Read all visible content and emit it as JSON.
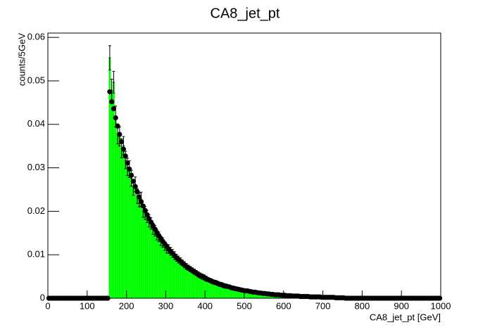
{
  "chart_data": {
    "type": "histogram",
    "title": "CA8_jet_pt",
    "xlabel": "CA8_jet_pt [GeV]",
    "ylabel": "counts/5GeV",
    "xlim": [
      0,
      1000
    ],
    "ylim": [
      0,
      0.061
    ],
    "xticks": [
      0,
      100,
      200,
      300,
      400,
      500,
      600,
      700,
      800,
      900,
      1000
    ],
    "yticks": [
      0,
      0.01,
      0.02,
      0.03,
      0.04,
      0.05,
      0.06
    ],
    "bins": [
      0,
      5,
      10,
      15,
      20,
      25,
      30,
      35,
      40,
      45,
      50,
      55,
      60,
      65,
      70,
      75,
      80,
      85,
      90,
      95,
      100,
      105,
      110,
      115,
      120,
      125,
      130,
      135,
      140,
      145,
      150,
      155,
      160,
      165,
      170,
      175,
      180,
      185,
      190,
      195,
      200,
      205,
      210,
      215,
      220,
      225,
      230,
      235,
      240,
      245,
      250,
      255,
      260,
      265,
      270,
      275,
      280,
      285,
      290,
      295,
      300,
      305,
      310,
      315,
      320,
      325,
      330,
      335,
      340,
      345,
      350,
      355,
      360,
      365,
      370,
      375,
      380,
      385,
      390,
      395,
      400,
      405,
      410,
      415,
      420,
      425,
      430,
      435,
      440,
      445,
      450,
      455,
      460,
      465,
      470,
      475,
      480,
      485,
      490,
      495,
      500,
      505,
      510,
      515,
      520,
      525,
      530,
      535,
      540,
      545,
      550,
      555,
      560,
      565,
      570,
      575,
      580,
      585,
      590,
      595,
      600,
      605,
      610,
      615,
      620,
      625,
      630,
      635,
      640,
      645,
      650,
      655,
      660,
      665,
      670,
      675,
      680,
      685,
      690,
      695,
      700,
      705,
      710,
      715,
      720,
      725,
      730,
      735,
      740,
      745,
      750,
      755,
      760,
      765,
      770,
      775,
      780,
      785,
      790,
      795,
      800,
      805,
      810,
      815,
      820,
      825,
      830,
      835,
      840,
      845,
      850,
      855,
      860,
      865,
      870,
      875,
      880,
      885,
      890,
      895,
      900,
      905,
      910,
      915,
      920,
      925,
      930,
      935,
      940,
      945,
      950,
      955,
      960,
      965,
      970,
      975,
      980,
      985,
      990,
      995,
      1000
    ],
    "histogram": {
      "color": "#00ff00",
      "values": [
        0,
        0,
        0,
        0,
        0,
        0,
        0,
        0,
        0,
        0,
        0,
        0,
        0,
        0,
        0,
        0,
        0,
        0,
        0,
        0,
        0,
        0,
        0,
        0,
        0,
        0,
        0,
        0,
        0,
        0,
        0,
        0.0553,
        0.0478,
        0.0497,
        0.0418,
        0.0378,
        0.0372,
        0.0345,
        0.0351,
        0.0318,
        0.0302,
        0.0297,
        0.0276,
        0.0255,
        0.0262,
        0.0235,
        0.0226,
        0.0228,
        0.0201,
        0.0196,
        0.0188,
        0.0178,
        0.0172,
        0.016,
        0.0155,
        0.0146,
        0.0141,
        0.0132,
        0.0128,
        0.012,
        0.0114,
        0.0113,
        0.0108,
        0.0103,
        0.0098,
        0.0093,
        0.0089,
        0.0085,
        0.0081,
        0.0077,
        0.0073,
        0.007,
        0.0067,
        0.0064,
        0.0061,
        0.0058,
        0.0055,
        0.0052,
        0.005,
        0.0048,
        0.0045,
        0.0043,
        0.0041,
        0.0039,
        0.0037,
        0.0036,
        0.0034,
        0.0032,
        0.0031,
        0.0029,
        0.0028,
        0.0027,
        0.0026,
        0.0024,
        0.0023,
        0.0022,
        0.0021,
        0.002,
        0.0019,
        0.0018,
        0.0017,
        0.0017,
        0.0016,
        0.0015,
        0.0014,
        0.0014,
        0.0013,
        0.0012,
        0.0012,
        0.0011,
        0.0011,
        0.001,
        0.001,
        0.0009,
        0.0009,
        0.0008,
        0.0008,
        0.0008,
        0.0007,
        0.0007,
        0.0007,
        0.0006,
        0.0006,
        0.0006,
        0.0005,
        0.0005,
        0.0005,
        0.0005,
        0.0004,
        0.0004,
        0.0004,
        0.0004,
        0.0004,
        0.0003,
        0.0003,
        0.0003,
        0.0003,
        0.0003,
        0.0003,
        0.0002,
        0.0002,
        0.0002,
        0.0002,
        0.0002,
        0.0002,
        0.0002,
        0.0001,
        0.0001,
        0.0001,
        0.0001,
        0.0001,
        0,
        0,
        0,
        0,
        0,
        0,
        0,
        0,
        0,
        0,
        0,
        0,
        0,
        0,
        0,
        0,
        0,
        0,
        0,
        0,
        0,
        0,
        0,
        0,
        0,
        0,
        0,
        0,
        0,
        0,
        0,
        0,
        0,
        0,
        0,
        0,
        0,
        0,
        0,
        0,
        0,
        0,
        0,
        0,
        0,
        0,
        0,
        0,
        0
      ],
      "errors": [
        0,
        0,
        0,
        0,
        0,
        0,
        0,
        0,
        0,
        0,
        0,
        0,
        0,
        0,
        0,
        0,
        0,
        0,
        0,
        0,
        0,
        0,
        0,
        0,
        0,
        0,
        0,
        0,
        0,
        0,
        0,
        0.0028,
        0.0026,
        0.0025,
        0.0024,
        0.0023,
        0.0022,
        0.0022,
        0.0021,
        0.002,
        0.002,
        0.0019,
        0.0018,
        0.0018,
        0.0017,
        0.0017,
        0.0016,
        0.0016,
        0.0015,
        0.0015,
        0.0014,
        0.0014,
        0.0013,
        0.0013,
        0.0012,
        0.0012,
        0.0011,
        0.0011,
        0.0011,
        0.001,
        0.001,
        0.001,
        0.0009,
        0.0009,
        0.0009,
        0.0008,
        0.0008,
        0.0008,
        0.0007,
        0.0007,
        0.0007,
        0.0006,
        0.0006,
        0.0006,
        0.0006,
        0.0006,
        0.0006,
        0.0006,
        0.0006,
        0.0006,
        0.0006,
        0.0005,
        0.0005,
        0.0005,
        0.0005,
        0.0005,
        0.0005,
        0.0005,
        0.0005,
        0.0005,
        0.0005,
        0.0004,
        0.0004,
        0.0004,
        0.0004,
        0.0004,
        0.0004,
        0.0004,
        0.0004,
        0.0004,
        0.0004,
        0.0003,
        0.0003,
        0.0003,
        0.0003,
        0.0003,
        0.0003,
        0.0003,
        0.0003,
        0.0003,
        0.0003,
        0.0002,
        0.0002,
        0.0002,
        0.0002,
        0.0002,
        0.0002,
        0.0002,
        0.0002,
        0.0002,
        0.0002,
        0.0002,
        0.0002,
        0.0002,
        0.0002,
        0.0002,
        0.0002,
        0.0002,
        0.0002,
        0.0002,
        0.0002,
        0.0002,
        0.0002,
        0.0002,
        0.0002,
        0.0002,
        0.0002,
        0.0002,
        0.0002,
        0.0002,
        0.0002,
        0.0002,
        0.0002,
        0.0002,
        0.0002,
        0.0002,
        0.0002,
        0.0002,
        0.0002,
        0.0002,
        0.0002,
        0,
        0,
        0,
        0,
        0,
        0,
        0,
        0,
        0,
        0,
        0,
        0,
        0,
        0,
        0,
        0,
        0,
        0,
        0,
        0,
        0,
        0,
        0,
        0,
        0,
        0,
        0,
        0,
        0,
        0,
        0,
        0,
        0,
        0,
        0,
        0,
        0,
        0,
        0,
        0,
        0,
        0,
        0,
        0,
        0,
        0,
        0,
        0,
        0
      ]
    },
    "points": {
      "color": "#000000",
      "values": [
        0,
        0,
        0,
        0,
        0,
        0,
        0,
        0,
        0,
        0,
        0,
        0,
        0,
        0,
        0,
        0,
        0,
        0,
        0,
        0,
        0,
        0,
        0,
        0,
        0,
        0,
        0,
        0,
        0,
        0,
        0,
        0.0475,
        0.0452,
        0.0436,
        0.0415,
        0.0396,
        0.0377,
        0.036,
        0.0343,
        0.0327,
        0.0311,
        0.0297,
        0.0283,
        0.0269,
        0.0257,
        0.0245,
        0.0233,
        0.0222,
        0.0212,
        0.0202,
        0.0192,
        0.0183,
        0.0175,
        0.0167,
        0.0159,
        0.0151,
        0.0144,
        0.0137,
        0.0131,
        0.0125,
        0.0119,
        0.0113,
        0.0108,
        0.0103,
        0.0098,
        0.0093,
        0.0089,
        0.0085,
        0.0081,
        0.0077,
        0.0073,
        0.007,
        0.0067,
        0.0064,
        0.0061,
        0.0058,
        0.0055,
        0.0052,
        0.005,
        0.0048,
        0.0045,
        0.0043,
        0.0041,
        0.0039,
        0.0037,
        0.0036,
        0.0034,
        0.0032,
        0.0031,
        0.0029,
        0.0028,
        0.0027,
        0.0026,
        0.0024,
        0.0023,
        0.0022,
        0.0021,
        0.002,
        0.0019,
        0.0018,
        0.0017,
        0.0017,
        0.0016,
        0.0015,
        0.0014,
        0.0014,
        0.0013,
        0.0012,
        0.0012,
        0.0011,
        0.0011,
        0.001,
        0.001,
        0.0009,
        0.0009,
        0.0008,
        0.0008,
        0.0008,
        0.0007,
        0.0007,
        0.0007,
        0.0006,
        0.0006,
        0.0006,
        0.0005,
        0.0005,
        0.0005,
        0.0005,
        0.0004,
        0.0004,
        0.0004,
        0.0004,
        0.0004,
        0.0003,
        0.0003,
        0.0003,
        0.0003,
        0.0003,
        0.0003,
        0.0002,
        0.0002,
        0.0002,
        0.0002,
        0.0002,
        0.0002,
        0.0002,
        0.0001,
        0.0001,
        0.0001,
        0.0001,
        0.0001,
        0,
        0,
        0,
        0,
        0,
        0,
        0,
        0,
        0,
        0,
        0,
        0,
        0,
        0,
        0,
        0,
        0,
        0,
        0,
        0,
        0,
        0,
        0,
        0,
        0,
        0,
        0,
        0,
        0,
        0,
        0,
        0,
        0,
        0,
        0,
        0,
        0,
        0,
        0,
        0,
        0,
        0,
        0,
        0,
        0,
        0,
        0,
        0,
        0
      ]
    }
  }
}
